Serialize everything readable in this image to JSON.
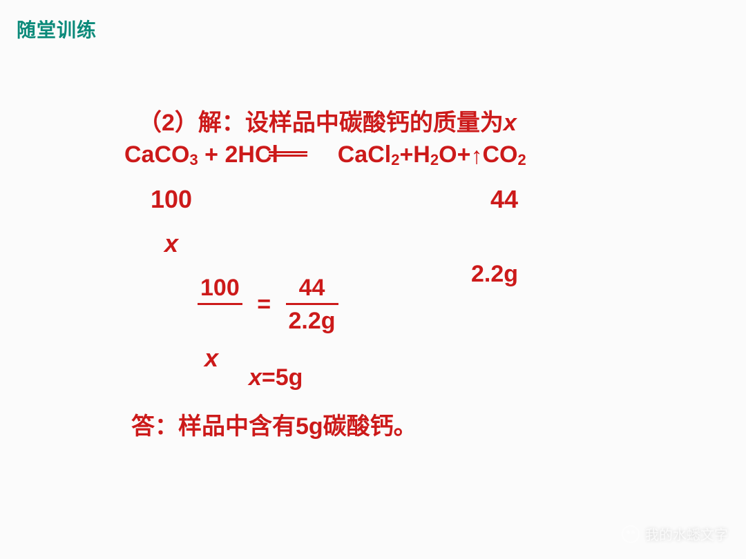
{
  "header": {
    "title": "随堂训练"
  },
  "problem": {
    "line1": "（2）解：设样品中碳酸钙的质量为",
    "varname": "x",
    "equation": {
      "lhs1": "CaCO",
      "sub1": "3",
      "plus1": " + 2HCl",
      "rhs1": "CaCl",
      "sub2": "2",
      "rhs2": "+H",
      "sub3": "2",
      "rhs3": "O+",
      "rhs4": "CO",
      "sub4": "2"
    },
    "mass_caco3": "100",
    "mass_co2": "44",
    "x_label": "x",
    "g22": "2.2g",
    "fraction": {
      "left_top": "100",
      "left_bot": "x",
      "right_top": "44",
      "right_bot": "2.2g",
      "equals": "="
    },
    "x_big": "x",
    "solve": "x=5g",
    "solve_var": "x",
    "solve_rest": "=5g",
    "answer": "答：样品中含有5g碳酸钙。"
  },
  "watermark": {
    "text": "我的水蟋文字"
  },
  "colors": {
    "header": "#0b8a7a",
    "text": "#cc1a1a",
    "background": "#fbfbfb"
  }
}
